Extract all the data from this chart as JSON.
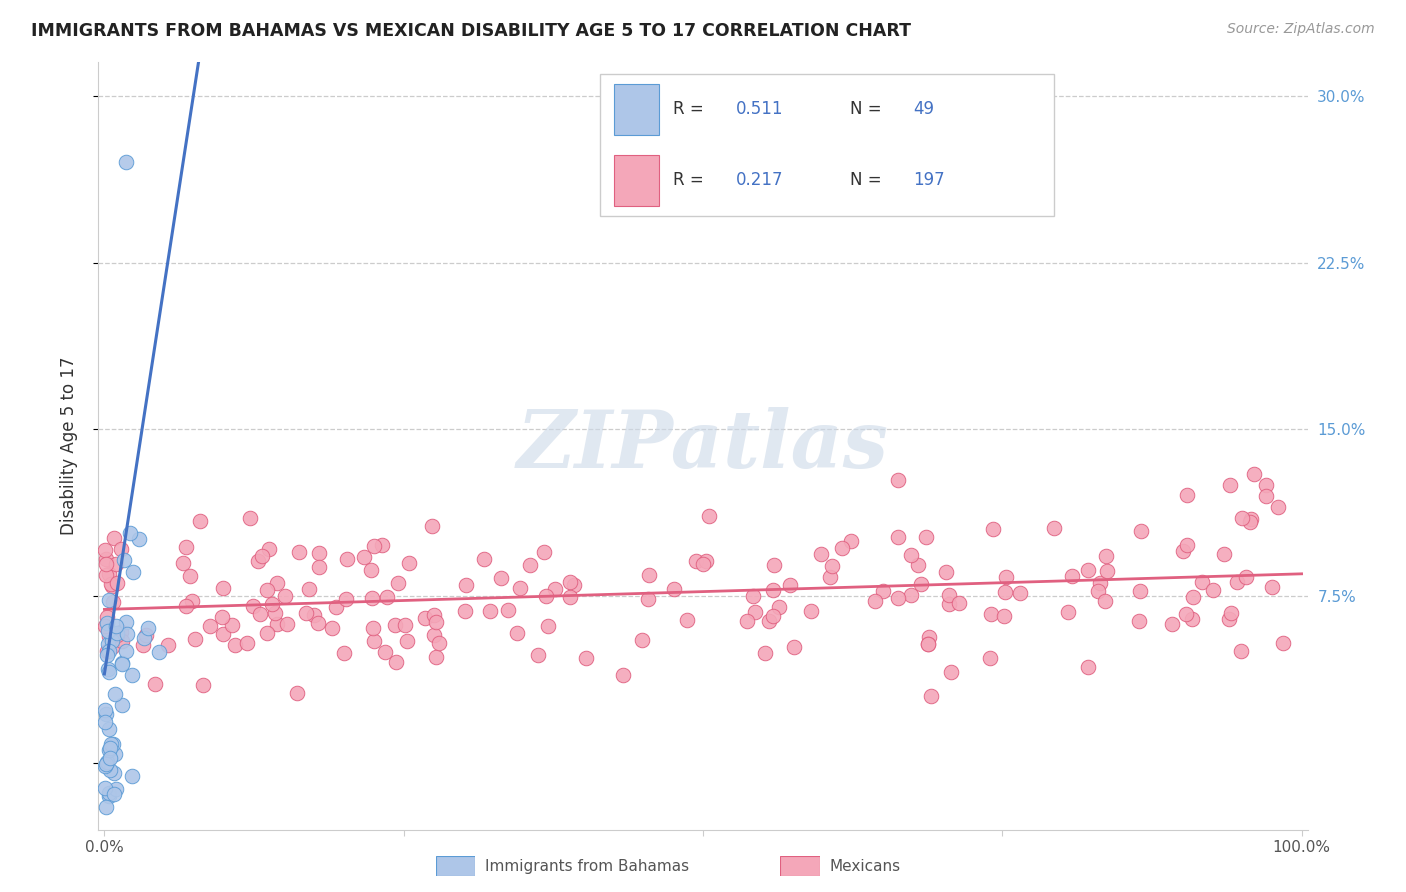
{
  "title": "IMMIGRANTS FROM BAHAMAS VS MEXICAN DISABILITY AGE 5 TO 17 CORRELATION CHART",
  "source": "Source: ZipAtlas.com",
  "ylabel": "Disability Age 5 to 17",
  "bahamas_R": 0.511,
  "bahamas_N": 49,
  "mexican_R": 0.217,
  "mexican_N": 197,
  "color_bahamas_fill": "#aec6e8",
  "color_bahamas_edge": "#5b9bd5",
  "color_mexican_fill": "#f4a7b9",
  "color_mexican_edge": "#e06080",
  "color_bahamas_trend": "#4472c4",
  "color_mexican_trend": "#e06080",
  "background_color": "#ffffff",
  "grid_color": "#cccccc",
  "title_color": "#222222",
  "right_label_color": "#5b9bd5",
  "legend_number_color": "#4472c4",
  "watermark_color": "#ccd9e8"
}
